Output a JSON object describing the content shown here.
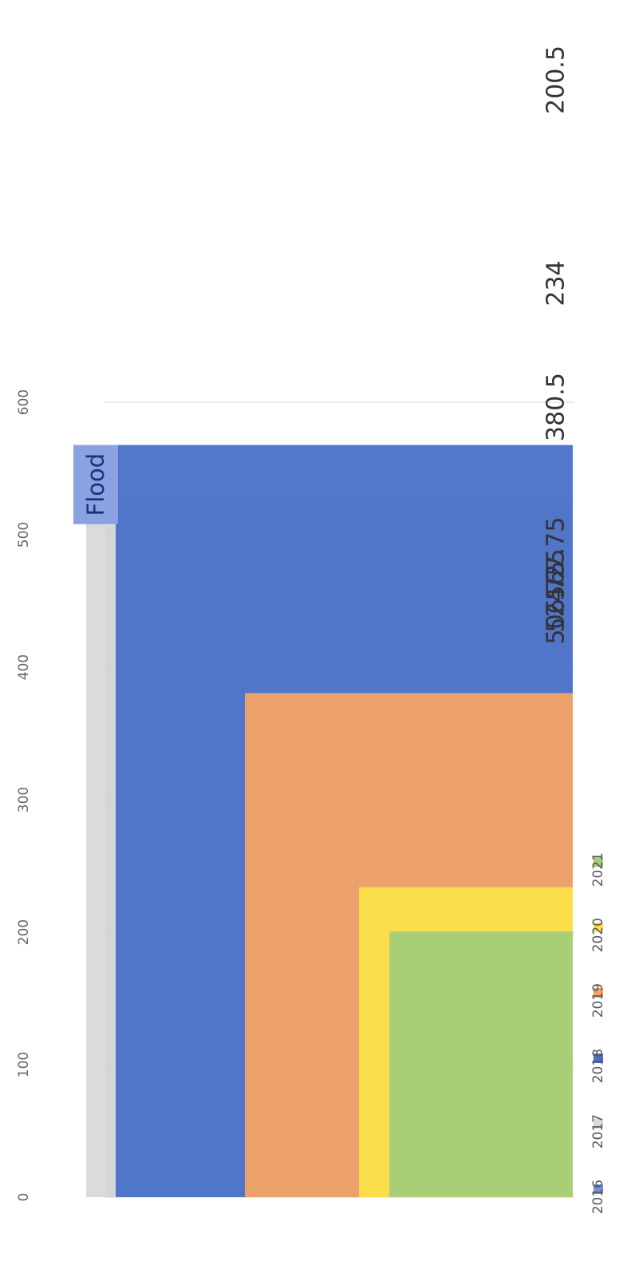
{
  "chart_data": {
    "type": "bar",
    "orientation": "rotated-90-clockwise",
    "categories": [
      "2016",
      "2017",
      "2018",
      "2019",
      "2020",
      "2021"
    ],
    "values": [
      506.75,
      524.25,
      567.75,
      380.5,
      234,
      200.5
    ],
    "data_labels": [
      "506.75",
      "524.25",
      "567.75",
      "380.5",
      "234",
      "200.5"
    ],
    "colors": [
      "#6f93dc",
      "#d9d9d9",
      "#4a70c8",
      "#f4a366",
      "#fde14a",
      "#a4cd78"
    ],
    "ylim": [
      0,
      600
    ],
    "ticks": [
      0,
      100,
      200,
      300,
      400,
      500,
      600
    ],
    "tick_labels": [
      "0",
      "100",
      "200",
      "300",
      "400",
      "500",
      "600"
    ],
    "grid": true,
    "legend": {
      "position": "bottom",
      "entries": [
        "2016",
        "2017",
        "2018",
        "2019",
        "2020",
        "2021"
      ]
    },
    "annotation": {
      "text": "Flood",
      "series": "2018",
      "from": 508,
      "to": 567.75,
      "color": "#8aa1e2"
    },
    "title": "",
    "xlabel": "",
    "ylabel": ""
  }
}
